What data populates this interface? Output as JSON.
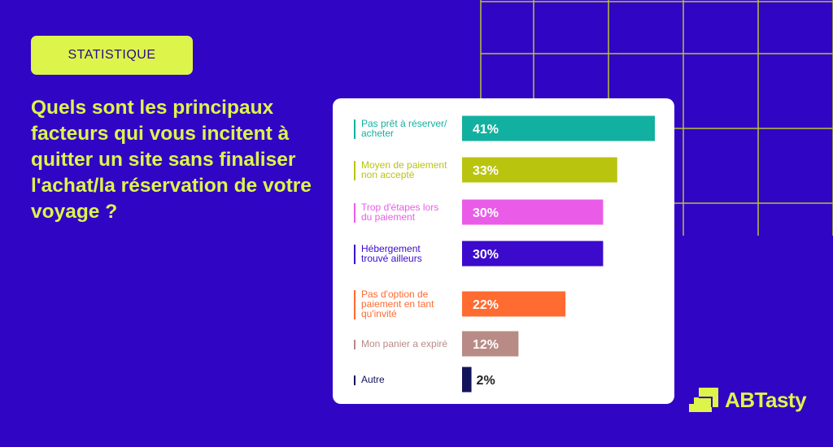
{
  "header": {
    "tag_label": "STATISTIQUE",
    "question": "Quels sont les principaux facteurs qui vous incitent à quitter un site sans finaliser l'achat/la réservation de votre voyage ?"
  },
  "brand": {
    "name": "ABTasty"
  },
  "colors": {
    "background": "#3105c4",
    "accent": "#ddf54a",
    "card": "#ffffff"
  },
  "chart_data": {
    "type": "bar",
    "orientation": "horizontal",
    "categories": [
      [
        "Pas prêt à réserver/",
        "acheter"
      ],
      [
        "Moyen de paiement",
        "non accepté"
      ],
      [
        "Trop d'étapes lors",
        "du paiement"
      ],
      [
        "Hébergement",
        "trouvé ailleurs"
      ],
      [
        "Pas d'option de",
        "paiement en tant",
        "qu'invité"
      ],
      [
        "Mon panier a expiré"
      ],
      [
        "Autre"
      ]
    ],
    "values": [
      41,
      33,
      30,
      30,
      22,
      12,
      2
    ],
    "data_labels": [
      "41%",
      "33%",
      "30%",
      "30%",
      "22%",
      "12%",
      "2%"
    ],
    "unit": "%",
    "colors": [
      "#12b0a0",
      "#b9c40f",
      "#ea5ce8",
      "#3c0acd",
      "#ff6b30",
      "#b88b86",
      "#11135a"
    ],
    "xlim": [
      0,
      41
    ]
  }
}
